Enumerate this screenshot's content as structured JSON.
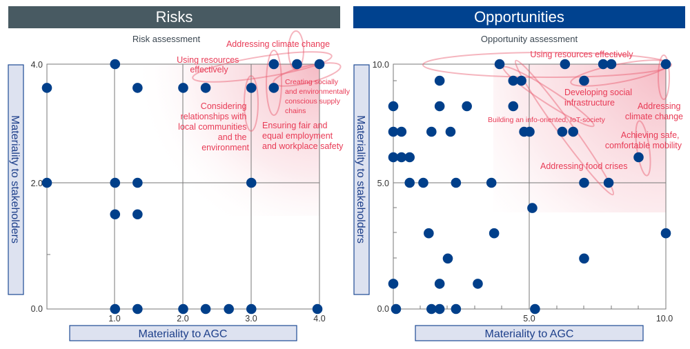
{
  "headers": {
    "risks": "Risks",
    "opportunities": "Opportunities"
  },
  "colors": {
    "point": "#003f8a",
    "annotation": "#e83a55",
    "risks_header": "#485a62",
    "opportunities_header": "#00428f"
  },
  "chart_data": [
    {
      "type": "scatter",
      "title": "Risk assessment",
      "xlabel": "Materiality to AGC",
      "ylabel": "Materiality to stakeholders",
      "xlim": [
        0,
        4
      ],
      "ylim": [
        0,
        4
      ],
      "xticks": [
        "1.0",
        "2.0",
        "3.0",
        "4.0"
      ],
      "yticks": [
        "4.0",
        "2.0",
        "0.0"
      ],
      "points": [
        [
          0,
          3.6
        ],
        [
          1,
          4
        ],
        [
          1.33,
          3.6
        ],
        [
          2,
          3.6
        ],
        [
          2.33,
          3.6
        ],
        [
          3,
          3.6
        ],
        [
          3.33,
          3.6
        ],
        [
          3.33,
          4
        ],
        [
          3.67,
          4
        ],
        [
          4,
          4
        ],
        [
          0,
          2
        ],
        [
          1,
          2
        ],
        [
          1.33,
          2
        ],
        [
          3,
          2
        ],
        [
          1,
          1.5
        ],
        [
          1.33,
          1.5
        ],
        [
          1,
          0
        ],
        [
          1.33,
          0
        ],
        [
          2,
          0
        ],
        [
          2.33,
          0
        ],
        [
          2.67,
          0
        ],
        [
          3,
          0
        ],
        [
          3.97,
          0
        ]
      ],
      "annotations": {
        "climate": [
          "Addressing climate change"
        ],
        "resources": [
          "Using resources",
          "effectively"
        ],
        "supply": [
          "Creating socially",
          "and environmentally",
          "conscious supply",
          "chains"
        ],
        "communities": [
          "Considering",
          "relationships with",
          "local communities",
          "and the",
          "environment"
        ],
        "employment": [
          "Ensuring fair and",
          "equal employment",
          "and workplace safety"
        ]
      }
    },
    {
      "type": "scatter",
      "title": "Opportunity assessment",
      "xlabel": "Materiality to AGC",
      "ylabel": "Materiality to stakeholders",
      "xlim": [
        0,
        10
      ],
      "ylim": [
        0,
        10
      ],
      "xticks": [
        "5.0",
        "10.0"
      ],
      "yticks": [
        "10.0",
        "5.0",
        "0.0"
      ],
      "points": [
        [
          3.9,
          10
        ],
        [
          6.3,
          10
        ],
        [
          7.7,
          10
        ],
        [
          8.0,
          10
        ],
        [
          10,
          10
        ],
        [
          1.7,
          9
        ],
        [
          4.4,
          9
        ],
        [
          4.7,
          9
        ],
        [
          7.0,
          9
        ],
        [
          0,
          8
        ],
        [
          1.7,
          8
        ],
        [
          2.7,
          8
        ],
        [
          4.4,
          8
        ],
        [
          0,
          7
        ],
        [
          0.3,
          7
        ],
        [
          1.4,
          7
        ],
        [
          2.1,
          7
        ],
        [
          4.8,
          7
        ],
        [
          5.0,
          7
        ],
        [
          6.2,
          7
        ],
        [
          6.6,
          7
        ],
        [
          0,
          6
        ],
        [
          0.3,
          6
        ],
        [
          0.6,
          6
        ],
        [
          9.0,
          6
        ],
        [
          0.6,
          5
        ],
        [
          1.1,
          5
        ],
        [
          2.3,
          5
        ],
        [
          3.6,
          5
        ],
        [
          7.0,
          5
        ],
        [
          7.9,
          5
        ],
        [
          5.1,
          4
        ],
        [
          1.3,
          3
        ],
        [
          3.7,
          3
        ],
        [
          10,
          3
        ],
        [
          2.0,
          2
        ],
        [
          7.0,
          2
        ],
        [
          0,
          1
        ],
        [
          1.7,
          1
        ],
        [
          3.1,
          1
        ],
        [
          0.1,
          0
        ],
        [
          1.4,
          0
        ],
        [
          1.7,
          0
        ],
        [
          2.3,
          0
        ],
        [
          5.2,
          0
        ]
      ],
      "annotations": {
        "resources": [
          "Using resources effectively"
        ],
        "infrastructure": [
          "Developing social",
          "infrastructure"
        ],
        "climate": [
          "Addressing",
          "climate change"
        ],
        "iot": [
          "Building an info-oriented, IoT-society"
        ],
        "mobility": [
          "Achieving safe,",
          "comfortable mobility"
        ],
        "food": [
          "Addressing food crises"
        ]
      }
    }
  ]
}
